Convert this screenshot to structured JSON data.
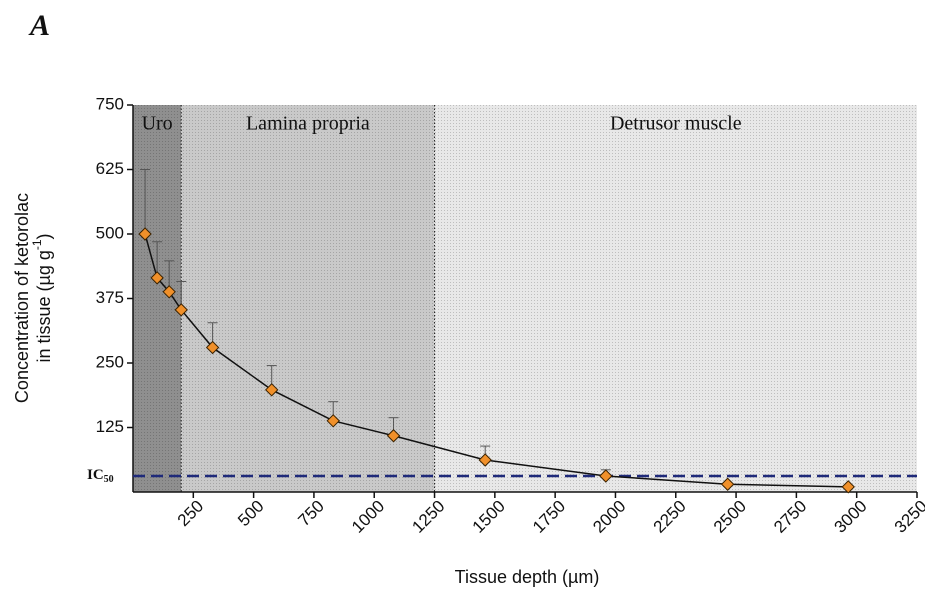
{
  "chart_data": {
    "type": "line",
    "panel_label": "A",
    "x_label": "Tissue depth (µm)",
    "y_label": {
      "line1": "Concentration of ketorolac",
      "line2": "in tissue (µg g",
      "line2_sup": "-1",
      "line2_end": ")"
    },
    "xlim": [
      0,
      3250
    ],
    "xticks": [
      250,
      500,
      750,
      1000,
      1250,
      1500,
      1750,
      2000,
      2250,
      2500,
      2750,
      3000,
      3250
    ],
    "ylim": [
      0,
      750
    ],
    "yticks": [
      125,
      250,
      375,
      500,
      625,
      750
    ],
    "regions": [
      {
        "name": "Uro",
        "start": 0,
        "end": 200,
        "color": "#8f8f8f"
      },
      {
        "name": "Lamina propria",
        "start": 200,
        "end": 1250,
        "color": "#c9c9c9"
      },
      {
        "name": "Detrusor muscle",
        "start": 1250,
        "end": 3250,
        "color": "#e8e8e8"
      }
    ],
    "ic50": {
      "value": 31,
      "label": "IC",
      "label_sub": "50",
      "color": "#1f2a7a"
    },
    "series": [
      {
        "color": "#f0902a",
        "x": [
          50,
          100,
          150,
          200,
          330,
          575,
          830,
          1080,
          1460,
          1960,
          2465,
          2965
        ],
        "values": [
          500,
          415,
          388,
          353,
          280,
          198,
          138,
          109,
          62,
          31,
          15,
          10
        ],
        "errors": [
          125,
          70,
          60,
          55,
          48,
          47,
          37,
          35,
          27,
          12,
          0,
          0
        ]
      }
    ]
  }
}
